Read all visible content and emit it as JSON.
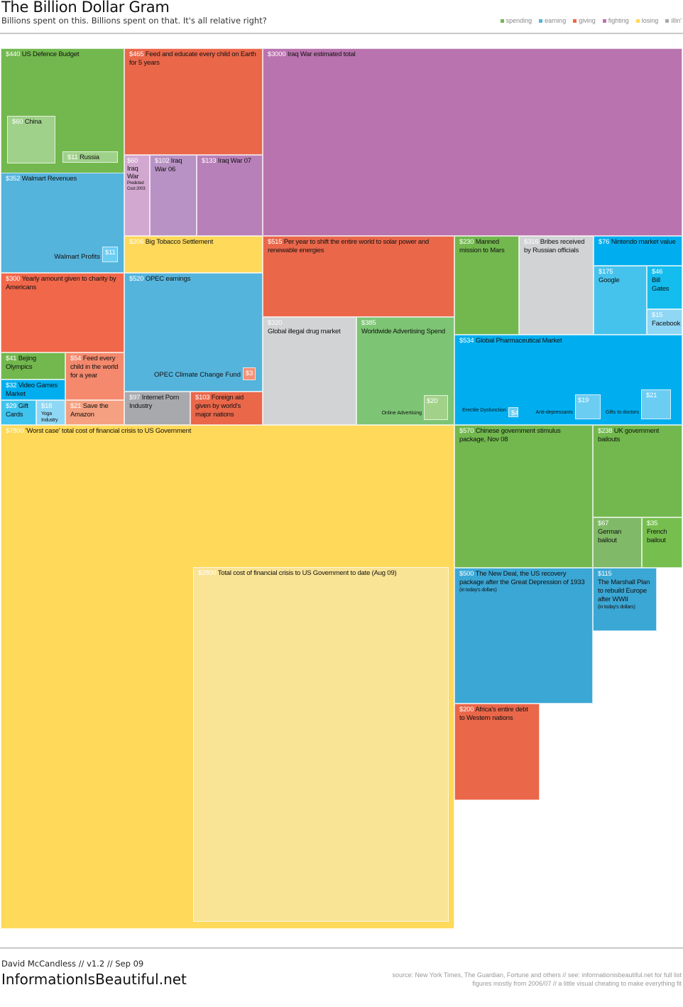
{
  "header": {
    "title": "The Billion Dollar Gram",
    "subtitle": "Billions spent on this. Billions spent on that. It's all relative right?"
  },
  "legend": [
    {
      "label": "spending",
      "color": "#72b84e"
    },
    {
      "label": "earning",
      "color": "#55b4dc"
    },
    {
      "label": "giving",
      "color": "#ec674a"
    },
    {
      "label": "fighting",
      "color": "#b973ae"
    },
    {
      "label": "losing",
      "color": "#fed95a"
    },
    {
      "label": "illin'",
      "color": "#a7a9ac"
    }
  ],
  "chart_data": {
    "type": "treemap",
    "unit": "$ billions",
    "items": [
      {
        "value": 440,
        "label": "US Defence Budget",
        "category": "spending",
        "color": "#72b84e"
      },
      {
        "value": 60,
        "label": "China",
        "category": "spending",
        "color": "#a0d18a"
      },
      {
        "value": 11,
        "label": "Russia",
        "category": "spending",
        "color": "#a0d18a"
      },
      {
        "value": 465,
        "label": "Feed and educate every child on Earth for 5 years",
        "category": "giving",
        "color": "#ea674a"
      },
      {
        "value": 60,
        "label": "Iraq War",
        "note": "Predicted Cost 2003",
        "category": "fighting",
        "color": "#d3a8d0"
      },
      {
        "value": 102,
        "label": "Iraq War 06",
        "category": "fighting",
        "color": "#b892c4"
      },
      {
        "value": 133,
        "label": "Iraq War 07",
        "category": "fighting",
        "color": "#b880b8"
      },
      {
        "value": 3000,
        "label": "Iraq War estimated total",
        "category": "fighting",
        "color": "#b973ae"
      },
      {
        "value": 352,
        "label": "Walmart Revenues",
        "category": "earning",
        "color": "#55b4dc"
      },
      {
        "value": 11,
        "label": "Walmart Profits",
        "category": "earning",
        "color": "#6ccdf2"
      },
      {
        "value": 206,
        "label": "Big Tobacco Settlement",
        "category": "losing",
        "color": "#fed95a"
      },
      {
        "value": 300,
        "label": "Yearly amount given to charity by Americans",
        "category": "giving",
        "color": "#f1674a"
      },
      {
        "value": 520,
        "label": "OPEC earnings",
        "category": "earning",
        "color": "#55b4dc"
      },
      {
        "value": 3,
        "label": "OPEC Climate Change Fund",
        "category": "giving",
        "color": "#f39177"
      },
      {
        "value": 41,
        "label": "Bejing Olympics",
        "category": "spending",
        "color": "#72b84e"
      },
      {
        "value": 54,
        "label": "Feed every child in the world for a year",
        "category": "giving",
        "color": "#f4896d"
      },
      {
        "value": 32,
        "label": "Video Games Market",
        "category": "earning",
        "color": "#00aeef"
      },
      {
        "value": 29,
        "label": "Gift Cards",
        "category": "earning",
        "color": "#3fc3ef"
      },
      {
        "value": 18,
        "label": "Yoga Industry",
        "category": "earning",
        "color": "#8fd8f5"
      },
      {
        "value": 21,
        "label": "Save the Amazon",
        "category": "giving",
        "color": "#f5a080"
      },
      {
        "value": 97,
        "label": "Internet Porn Industry",
        "category": "illin'",
        "color": "#a7a9ac"
      },
      {
        "value": 103,
        "label": "Foreign aid given by world's major nations",
        "category": "giving",
        "color": "#ea674a"
      },
      {
        "value": 515,
        "label": "Per year to shift the entire world to solar power and renewable energies",
        "category": "giving",
        "color": "#ea674a"
      },
      {
        "value": 320,
        "label": "Global illegal drug market",
        "category": "illin'",
        "color": "#d1d3d4"
      },
      {
        "value": 385,
        "label": "Worldwide Advertising Spend",
        "category": "spending",
        "color": "#7dc574"
      },
      {
        "value": 20,
        "label": "Online Advertising",
        "category": "spending",
        "color": "#a2d28a"
      },
      {
        "value": 230,
        "label": "Manned mission to Mars",
        "category": "spending",
        "color": "#72b84e"
      },
      {
        "value": 316,
        "label": "Bribes received by Russian officials",
        "category": "illin'",
        "color": "#d1d3d4"
      },
      {
        "value": 76,
        "label": "Nintendo market value",
        "category": "earning",
        "color": "#00aeef"
      },
      {
        "value": 175,
        "label": "Google",
        "category": "earning",
        "color": "#46c3ec"
      },
      {
        "value": 46,
        "label": "Bill Gates",
        "category": "earning",
        "color": "#14bdee"
      },
      {
        "value": 15,
        "label": "Facebook",
        "category": "earning",
        "color": "#8fd7f5"
      },
      {
        "value": 534,
        "label": "Global Pharmaceutical Market",
        "category": "earning",
        "color": "#00aeef"
      },
      {
        "value": 4,
        "label": "Erectile Dysfunction",
        "category": "earning",
        "color": "#6ccdf2"
      },
      {
        "value": 19,
        "label": "Anti-depressants",
        "category": "earning",
        "color": "#6ccdf2"
      },
      {
        "value": 21,
        "label": "Gifts to doctors",
        "category": "earning",
        "color": "#6ccdf2"
      },
      {
        "value": 7800,
        "label": "'Worst case' total cost of financial crisis to US Government",
        "category": "losing",
        "color": "#fed95a"
      },
      {
        "value": 2800,
        "label": "Total cost of financial crisis to US Government to date (Aug 09)",
        "category": "losing",
        "color": "#f9e395"
      },
      {
        "value": 570,
        "label": "Chinese government stimulus package, Nov 08",
        "category": "spending",
        "color": "#72b84e"
      },
      {
        "value": 238,
        "label": "UK government bailouts",
        "category": "spending",
        "color": "#72b84e"
      },
      {
        "value": 67,
        "label": "German bailout",
        "category": "spending",
        "color": "#80b967"
      },
      {
        "value": 35,
        "label": "French bailout",
        "category": "spending",
        "color": "#76bf4e"
      },
      {
        "value": 500,
        "label": "The New Deal, the US recovery package after the Great Depression of 1933",
        "note": "(in today's dollars)",
        "category": "spending",
        "color": "#3ba7d5"
      },
      {
        "value": 115,
        "label": "The Marshall Plan to rebuild Europe after WWII",
        "note": "(in today's dollars)",
        "category": "spending",
        "color": "#3ba7d5"
      },
      {
        "value": 200,
        "label": "Africa's entire debt to Western nations",
        "category": "giving",
        "color": "#ea674a"
      }
    ]
  },
  "footer": {
    "credit": "David McCandless // v1.2 // Sep 09",
    "site": "InformationIsBeautiful.net",
    "source_line1": "source: New York Times, The Guardian, Fortune and others // see:  informationisbeautiful.net for full list",
    "source_line2": "figures mostly from 2006/07 // a little visual cheating to make everything fit"
  }
}
